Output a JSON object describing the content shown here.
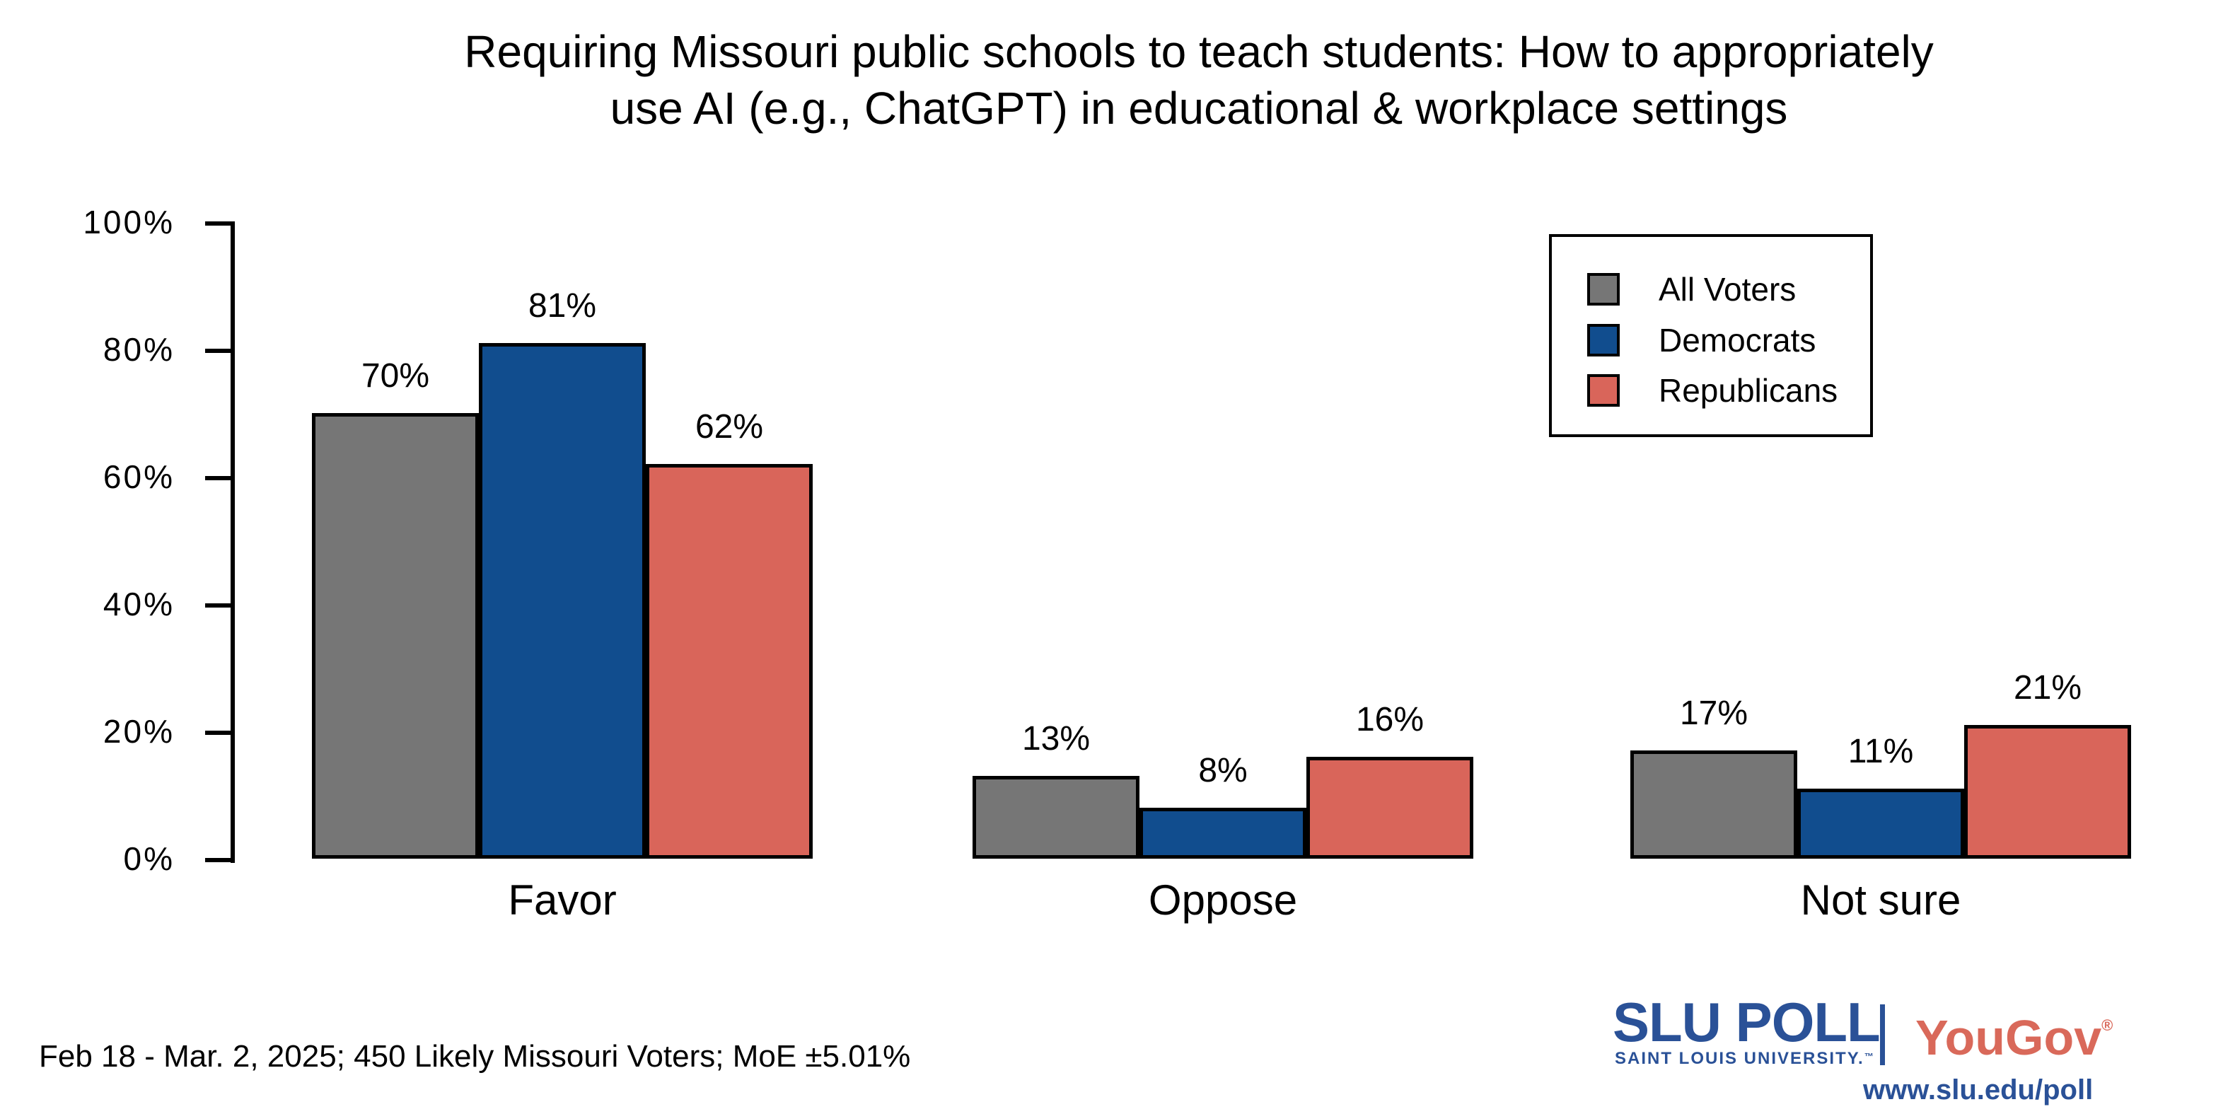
{
  "title": {
    "line1": "Requiring Missouri public schools to teach students: How to appropriately",
    "line2": "use AI (e.g., ChatGPT) in educational & workplace settings"
  },
  "chart_data": {
    "type": "bar",
    "title": "Requiring Missouri public schools to teach students: How to appropriately use AI (e.g., ChatGPT) in educational & workplace settings",
    "categories": [
      "Favor",
      "Oppose",
      "Not sure"
    ],
    "series": [
      {
        "name": "All Voters",
        "color": "#767676",
        "values": [
          70,
          13,
          17
        ]
      },
      {
        "name": "Democrats",
        "color": "#114d8e",
        "values": [
          81,
          8,
          11
        ]
      },
      {
        "name": "Republicans",
        "color": "#d9655a",
        "values": [
          62,
          16,
          21
        ]
      }
    ],
    "value_suffix": "%",
    "xlabel": "",
    "ylabel": "",
    "ylim": [
      0,
      100
    ],
    "ytick_values": [
      0,
      20,
      40,
      60,
      80,
      100
    ],
    "ytick_labels": [
      "0%",
      "20%",
      "40%",
      "60%",
      "80%",
      "100%"
    ],
    "grid": false,
    "bar_border_color": "#000000",
    "legend": {
      "position": "top-right",
      "entries": [
        "All Voters",
        "Democrats",
        "Republicans"
      ]
    }
  },
  "footer": {
    "text": "Feb 18 - Mar. 2, 2025; 450 Likely Missouri Voters; MoE ±5.01%"
  },
  "branding": {
    "slu_poll": "SLU POLL",
    "slu_sub": "SAINT LOUIS UNIVERSITY.",
    "slu_tm": "™",
    "yougov": "YouGov",
    "registered": "®",
    "url": "www.slu.edu/poll",
    "slu_blue": "#2a5197",
    "yougov_red": "#d9695a"
  }
}
